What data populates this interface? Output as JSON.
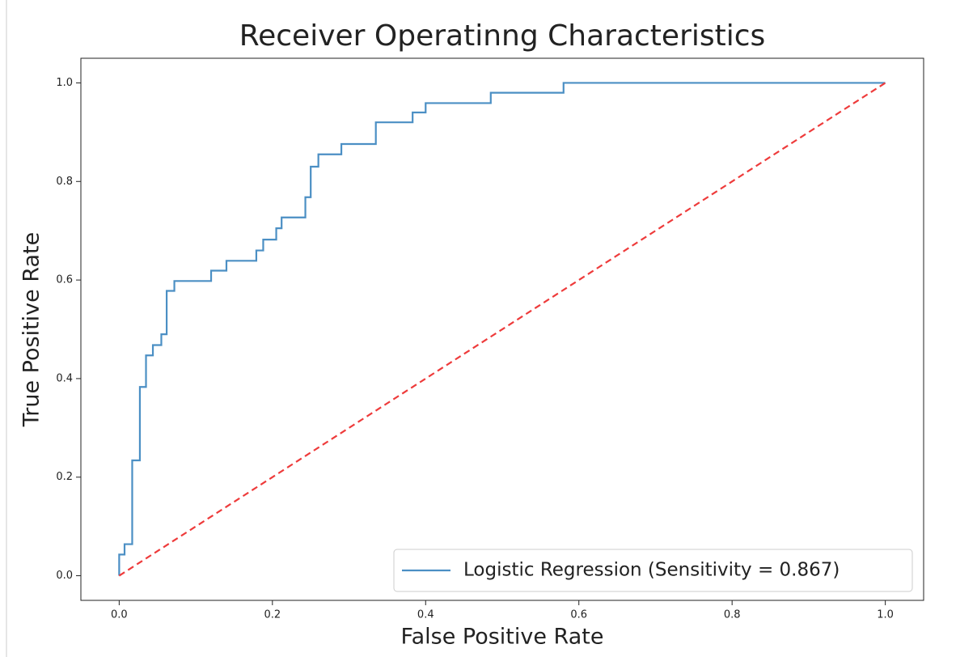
{
  "chart_data": {
    "type": "line",
    "title": "Receiver Operatinng Characteristics",
    "xlabel": "False Positive Rate",
    "ylabel": "True Positive Rate",
    "xlim": [
      -0.05,
      1.05
    ],
    "ylim": [
      -0.05,
      1.05
    ],
    "xticks": [
      {
        "value": 0,
        "label": "0.0"
      },
      0.2,
      0.4,
      0.6,
      0.8,
      {
        "value": 1,
        "label": "1.0"
      }
    ],
    "yticks": [
      {
        "value": 0,
        "label": "0.0"
      },
      0.2,
      0.4,
      0.6,
      0.8,
      {
        "value": 1,
        "label": "1.0"
      }
    ],
    "legend": "lower right",
    "series": [
      {
        "name": "Logistic Regression (Sensitivity = 0.867)",
        "color": "#4b8fc4",
        "linestyle": "solid",
        "x": [
          0,
          0,
          0.007,
          0.007,
          0.017,
          0.017,
          0.027,
          0.027,
          0.035,
          0.035,
          0.044,
          0.044,
          0.055,
          0.055,
          0.062,
          0.062,
          0.072,
          0.072,
          0.12,
          0.12,
          0.14,
          0.14,
          0.179,
          0.179,
          0.188,
          0.188,
          0.205,
          0.205,
          0.212,
          0.212,
          0.243,
          0.243,
          0.25,
          0.25,
          0.26,
          0.26,
          0.29,
          0.29,
          0.335,
          0.335,
          0.383,
          0.383,
          0.4,
          0.4,
          0.485,
          0.485,
          0.58,
          0.58,
          1
        ],
        "values": [
          0,
          0.043,
          0.043,
          0.064,
          0.064,
          0.234,
          0.234,
          0.383,
          0.383,
          0.447,
          0.447,
          0.468,
          0.468,
          0.49,
          0.49,
          0.578,
          0.578,
          0.598,
          0.598,
          0.619,
          0.619,
          0.639,
          0.639,
          0.66,
          0.66,
          0.682,
          0.682,
          0.705,
          0.705,
          0.727,
          0.727,
          0.768,
          0.768,
          0.83,
          0.83,
          0.855,
          0.855,
          0.876,
          0.876,
          0.92,
          0.92,
          0.94,
          0.94,
          0.959,
          0.959,
          0.98,
          0.98,
          1.0,
          1.0
        ]
      },
      {
        "color": "#ee3b3b",
        "linestyle": "dashed",
        "x": [
          0,
          1
        ],
        "values": [
          0,
          1
        ]
      }
    ]
  }
}
